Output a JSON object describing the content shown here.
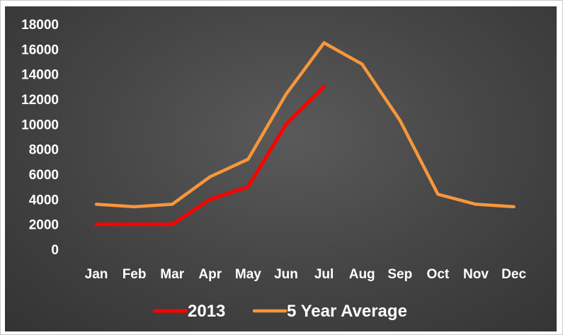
{
  "chart_data": {
    "type": "line",
    "categories": [
      "Jan",
      "Feb",
      "Mar",
      "Apr",
      "May",
      "Jun",
      "Jul",
      "Aug",
      "Sep",
      "Oct",
      "Nov",
      "Dec"
    ],
    "ylim": [
      0,
      18000
    ],
    "yticks": [
      0,
      2000,
      4000,
      6000,
      8000,
      10000,
      12000,
      14000,
      16000,
      18000
    ],
    "grid": false,
    "legend_position": "bottom",
    "series": [
      {
        "name": "2013",
        "color": "#ff0000",
        "values": [
          2000,
          2000,
          2000,
          4000,
          5000,
          10000,
          13000,
          null,
          null,
          null,
          null,
          null
        ]
      },
      {
        "name": "5 Year Average",
        "color": "#f7963b",
        "values": [
          3600,
          3400,
          3600,
          5800,
          7200,
          12400,
          16500,
          14800,
          10300,
          4400,
          3600,
          3400
        ]
      }
    ]
  }
}
